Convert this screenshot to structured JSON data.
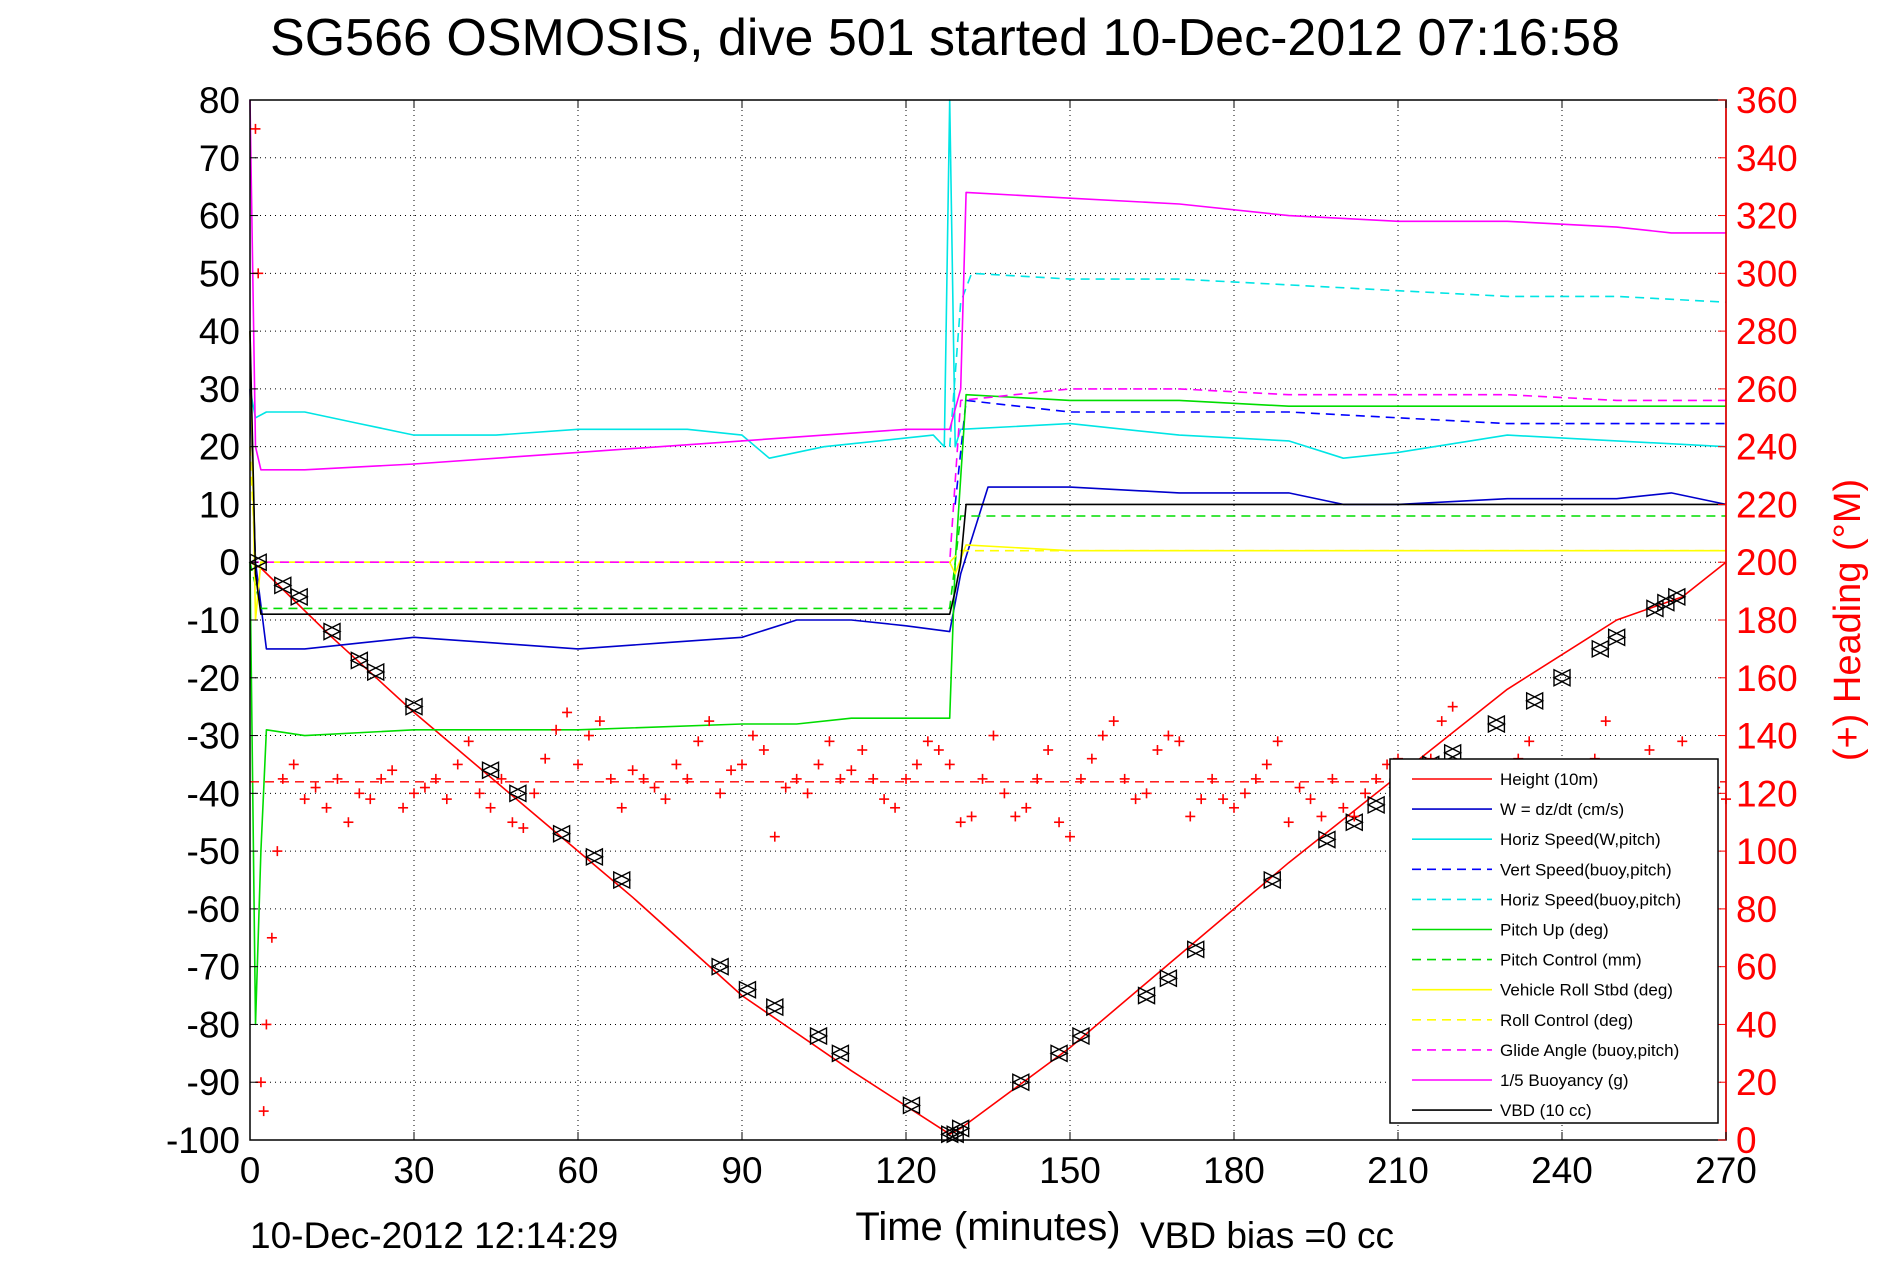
{
  "chart_data": {
    "type": "line",
    "title": "SG566 OSMOSIS, dive 501 started 10-Dec-2012 07:16:58",
    "xlabel": "Time (minutes)",
    "ylabel_right": "(+) Heading (°M)",
    "footer_left": "10-Dec-2012 12:14:29",
    "footer_right": "VBD bias =0 cc",
    "xlim": [
      0,
      270
    ],
    "ylim": [
      -100,
      80
    ],
    "ylim_right": [
      0,
      360
    ],
    "xticks": [
      "0",
      "30",
      "60",
      "90",
      "120",
      "150",
      "180",
      "210",
      "240",
      "270"
    ],
    "yticks": [
      "80",
      "70",
      "60",
      "50",
      "40",
      "30",
      "20",
      "10",
      "0",
      "-10",
      "-20",
      "-30",
      "-40",
      "-50",
      "-60",
      "-70",
      "-80",
      "-90",
      "-100"
    ],
    "yticks_right": [
      "360",
      "340",
      "320",
      "300",
      "280",
      "260",
      "240",
      "220",
      "200",
      "180",
      "160",
      "140",
      "120",
      "100",
      "80",
      "60",
      "40",
      "20",
      "0"
    ],
    "grid": true,
    "legend_position": "bottom-right",
    "colors": {
      "red": "#ff0000",
      "blue": "#0000cc",
      "cyan": "#00e5e5",
      "green": "#00dd00",
      "yellow": "#ffff00",
      "magenta": "#ff00ff",
      "black": "#000000"
    },
    "series": [
      {
        "name": "Height (10m)",
        "color": "#ff0000",
        "style": "solid",
        "x": [
          0,
          2,
          15,
          30,
          50,
          70,
          90,
          110,
          128,
          130,
          150,
          170,
          190,
          210,
          230,
          250,
          262,
          270
        ],
        "y": [
          0,
          -1,
          -13,
          -26,
          -42,
          -58,
          -75,
          -88,
          -99,
          -98,
          -84,
          -68,
          -52,
          -37,
          -22,
          -10,
          -6,
          0
        ]
      },
      {
        "name": "W = dz/dt (cm/s)",
        "color": "#0000cc",
        "style": "solid",
        "x": [
          0,
          1,
          3,
          10,
          20,
          30,
          45,
          60,
          75,
          90,
          100,
          110,
          120,
          128,
          130,
          135,
          150,
          170,
          190,
          200,
          210,
          230,
          250,
          260,
          270
        ],
        "y": [
          30,
          0,
          -15,
          -15,
          -14,
          -13,
          -14,
          -15,
          -14,
          -13,
          -10,
          -10,
          -11,
          -12,
          -2,
          13,
          13,
          12,
          12,
          10,
          10,
          11,
          11,
          12,
          10
        ]
      },
      {
        "name": "Horiz Speed(W,pitch)",
        "color": "#00e5e5",
        "style": "solid",
        "x": [
          0,
          1,
          3,
          10,
          20,
          30,
          45,
          60,
          80,
          90,
          95,
          105,
          115,
          125,
          127,
          128,
          129,
          130,
          150,
          170,
          190,
          200,
          210,
          230,
          250,
          270
        ],
        "y": [
          30,
          25,
          26,
          26,
          24,
          22,
          22,
          23,
          23,
          22,
          18,
          20,
          21,
          22,
          20,
          80,
          20,
          23,
          24,
          22,
          21,
          18,
          19,
          22,
          21,
          20
        ]
      },
      {
        "name": "Vert Speed(buoy,pitch)",
        "color": "#0000ff",
        "style": "dashed",
        "x": [
          129,
          131,
          150,
          170,
          190,
          210,
          230,
          250,
          270
        ],
        "y": [
          10,
          28,
          26,
          26,
          26,
          25,
          24,
          24,
          24
        ]
      },
      {
        "name": "Horiz Speed(buoy,pitch)",
        "color": "#00e5e5",
        "style": "dashed",
        "x": [
          128,
          130,
          132,
          150,
          170,
          190,
          210,
          230,
          250,
          270
        ],
        "y": [
          20,
          45,
          50,
          49,
          49,
          48,
          47,
          46,
          46,
          45
        ]
      },
      {
        "name": "Pitch Up (deg)",
        "color": "#00dd00",
        "style": "solid",
        "x": [
          0,
          1,
          2,
          3,
          10,
          30,
          60,
          90,
          100,
          110,
          128,
          129,
          131,
          150,
          170,
          190,
          210,
          230,
          250,
          270
        ],
        "y": [
          0,
          -80,
          -50,
          -29,
          -30,
          -29,
          -29,
          -28,
          -28,
          -27,
          -27,
          0,
          29,
          28,
          28,
          27,
          27,
          27,
          27,
          27
        ]
      },
      {
        "name": "Pitch Control (mm)",
        "color": "#00dd00",
        "style": "dashed",
        "x": [
          0,
          2,
          128,
          129,
          130,
          270
        ],
        "y": [
          0,
          -8,
          -8,
          0,
          8,
          8
        ]
      },
      {
        "name": "Vehicle Roll Stbd (deg)",
        "color": "#ffff00",
        "style": "solid",
        "x": [
          0,
          1,
          2,
          10,
          60,
          128,
          129,
          131,
          150,
          200,
          270
        ],
        "y": [
          40,
          -10,
          0,
          0,
          0,
          0,
          -2,
          3,
          2,
          2,
          2
        ]
      },
      {
        "name": "Roll Control (deg)",
        "color": "#ffff00",
        "style": "dashed",
        "x": [
          0,
          1,
          2,
          128,
          130,
          270
        ],
        "y": [
          20,
          0,
          0,
          0,
          2,
          2
        ]
      },
      {
        "name": "Glide Angle (buoy,pitch)",
        "color": "#ff00ff",
        "style": "dashed",
        "x": [
          0,
          2,
          128,
          130,
          150,
          170,
          190,
          210,
          230,
          250,
          270
        ],
        "y": [
          0,
          0,
          0,
          28,
          30,
          30,
          29,
          29,
          29,
          28,
          28
        ]
      },
      {
        "name": "1/5 Buoyancy (g)",
        "color": "#ff00ff",
        "style": "solid",
        "x": [
          0,
          1,
          2,
          10,
          30,
          60,
          90,
          120,
          128,
          130,
          131,
          150,
          170,
          190,
          210,
          230,
          250,
          260,
          270
        ],
        "y": [
          80,
          20,
          16,
          16,
          17,
          19,
          21,
          23,
          23,
          30,
          64,
          63,
          62,
          60,
          59,
          59,
          58,
          57,
          57
        ]
      },
      {
        "name": "VBD (10 cc)",
        "color": "#000000",
        "style": "solid",
        "x": [
          0,
          1,
          2,
          128,
          129,
          130,
          131,
          270
        ],
        "y": [
          40,
          -2,
          -9,
          -9,
          -5,
          0,
          10,
          10
        ]
      }
    ],
    "heading": {
      "axis": "right",
      "marker": "+",
      "color": "#ff0000",
      "x": [
        1,
        1.5,
        2,
        2.5,
        3,
        4,
        5,
        6,
        8,
        10,
        12,
        14,
        16,
        18,
        20,
        22,
        24,
        26,
        28,
        30,
        32,
        34,
        36,
        38,
        40,
        42,
        44,
        46,
        48,
        50,
        52,
        54,
        56,
        58,
        60,
        62,
        64,
        66,
        68,
        70,
        72,
        74,
        76,
        78,
        80,
        82,
        84,
        86,
        88,
        90,
        92,
        94,
        96,
        98,
        100,
        102,
        104,
        106,
        108,
        110,
        112,
        114,
        116,
        118,
        120,
        122,
        124,
        126,
        128,
        130,
        132,
        134,
        136,
        138,
        140,
        142,
        144,
        146,
        148,
        150,
        152,
        154,
        156,
        158,
        160,
        162,
        164,
        166,
        168,
        170,
        172,
        174,
        176,
        178,
        180,
        182,
        184,
        186,
        188,
        190,
        192,
        194,
        196,
        198,
        200,
        202,
        204,
        206,
        208,
        210,
        212,
        214,
        216,
        218,
        220,
        222,
        224,
        226,
        228,
        230,
        232,
        234,
        236,
        238,
        240,
        242,
        244,
        246,
        248,
        250,
        252,
        254,
        256,
        258,
        260,
        262,
        264,
        266,
        268,
        270
      ],
      "y": [
        350,
        300,
        20,
        10,
        40,
        70,
        100,
        125,
        130,
        118,
        122,
        115,
        125,
        110,
        120,
        118,
        125,
        128,
        115,
        120,
        122,
        125,
        118,
        130,
        138,
        120,
        115,
        125,
        110,
        108,
        120,
        132,
        142,
        148,
        130,
        140,
        145,
        125,
        115,
        128,
        125,
        122,
        118,
        130,
        125,
        138,
        145,
        120,
        128,
        130,
        140,
        135,
        105,
        122,
        125,
        120,
        130,
        138,
        125,
        128,
        135,
        125,
        118,
        115,
        125,
        130,
        138,
        135,
        130,
        110,
        112,
        125,
        140,
        120,
        112,
        115,
        125,
        135,
        110,
        105,
        125,
        132,
        140,
        145,
        125,
        118,
        120,
        135,
        140,
        138,
        112,
        118,
        125,
        118,
        115,
        120,
        125,
        130,
        138,
        110,
        122,
        118,
        112,
        125,
        115,
        112,
        120,
        125,
        130,
        132,
        128,
        118,
        132,
        145,
        150,
        120,
        115,
        122,
        130,
        128,
        132,
        138,
        128,
        120,
        125,
        130,
        118,
        132,
        145,
        128,
        125,
        130,
        135,
        130,
        128,
        138,
        125,
        120,
        122,
        118
      ]
    },
    "heading_target": {
      "axis": "right",
      "value": 124,
      "color": "#ff0000",
      "style": "dashed"
    },
    "markers": {
      "style": "triangle",
      "color": "#000000",
      "x": [
        1.5,
        6,
        9,
        15,
        20,
        23,
        30,
        44,
        49,
        57,
        63,
        68,
        86,
        91,
        96,
        104,
        108,
        121,
        128,
        129,
        130,
        141,
        148,
        152,
        164,
        168,
        173,
        187,
        197,
        202,
        206,
        210,
        216,
        220,
        228,
        235,
        240,
        247,
        250,
        257,
        259,
        261
      ],
      "y": [
        0,
        -4,
        -6,
        -12,
        -17,
        -19,
        -25,
        -36,
        -40,
        -47,
        -51,
        -55,
        -70,
        -74,
        -77,
        -82,
        -85,
        -94,
        -99,
        -99,
        -98,
        -90,
        -85,
        -82,
        -75,
        -72,
        -67,
        -55,
        -48,
        -45,
        -42,
        -39,
        -35,
        -33,
        -28,
        -24,
        -20,
        -15,
        -13,
        -8,
        -7,
        -6
      ]
    }
  }
}
